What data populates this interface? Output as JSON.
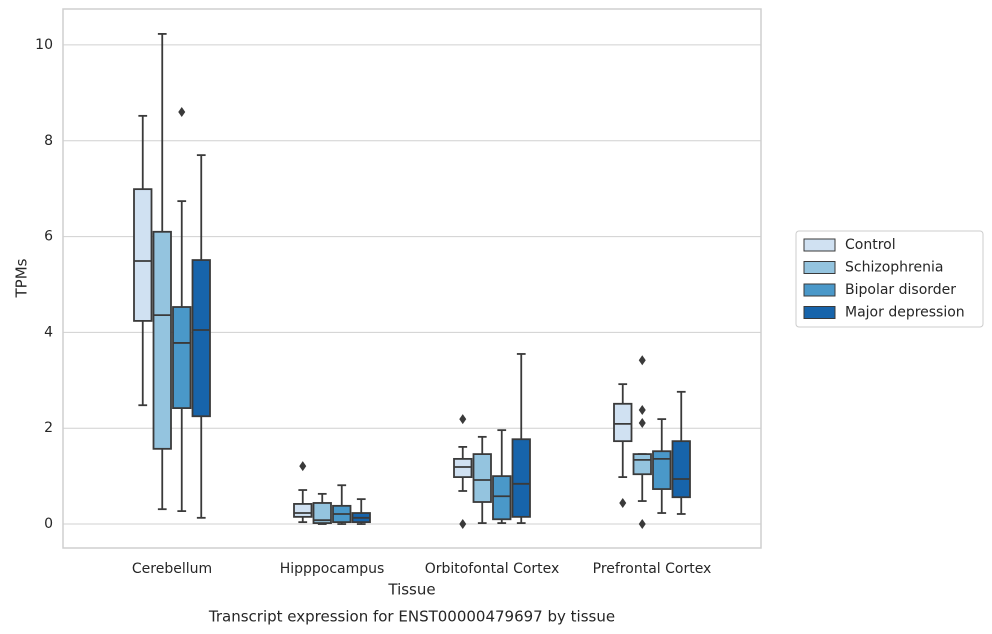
{
  "chart_data": {
    "type": "box",
    "caption": "Transcript expression for ENST00000479697 by tissue",
    "x_label": "Tissue",
    "y_label": "TPMs",
    "categories": [
      "Cerebellum",
      "Hipppocampus",
      "Orbitofontal Cortex",
      "Prefrontal Cortex"
    ],
    "ylim": [
      -0.5,
      10.75
    ],
    "yticks": [
      0,
      2,
      4,
      6,
      8,
      10
    ],
    "grid": true,
    "legend": "right",
    "series": [
      {
        "name": "Control",
        "color": "#d0e1f2",
        "boxes": [
          {
            "low": 2.48,
            "q1": 4.24,
            "median": 5.49,
            "q3": 6.99,
            "high": 8.52,
            "outliers": []
          },
          {
            "low": 0.04,
            "q1": 0.15,
            "median": 0.23,
            "q3": 0.42,
            "high": 0.71,
            "outliers": [
              1.21
            ]
          },
          {
            "low": 0.69,
            "q1": 0.98,
            "median": 1.19,
            "q3": 1.36,
            "high": 1.61,
            "outliers": [
              2.19,
              0
            ]
          },
          {
            "low": 0.98,
            "q1": 1.73,
            "median": 2.09,
            "q3": 2.51,
            "high": 2.92,
            "outliers": [
              0.44
            ]
          }
        ]
      },
      {
        "name": "Schizophrenia",
        "color": "#94c4df",
        "boxes": [
          {
            "low": 0.31,
            "q1": 1.57,
            "median": 4.36,
            "q3": 6.1,
            "high": 10.23,
            "outliers": []
          },
          {
            "low": 0,
            "q1": 0.02,
            "median": 0.08,
            "q3": 0.44,
            "high": 0.63,
            "outliers": []
          },
          {
            "low": 0.02,
            "q1": 0.46,
            "median": 0.92,
            "q3": 1.46,
            "high": 1.82,
            "outliers": []
          },
          {
            "low": 0.48,
            "q1": 1.04,
            "median": 1.34,
            "q3": 1.46,
            "high": 1.46,
            "outliers": [
              2.38,
              2.11,
              3.42,
              0
            ]
          }
        ]
      },
      {
        "name": "Bipolar disorder",
        "color": "#4a98c9",
        "boxes": [
          {
            "low": 0.27,
            "q1": 2.42,
            "median": 3.78,
            "q3": 4.53,
            "high": 6.74,
            "outliers": [
              8.6
            ]
          },
          {
            "low": 0,
            "q1": 0.04,
            "median": 0.21,
            "q3": 0.38,
            "high": 0.81,
            "outliers": []
          },
          {
            "low": 0.02,
            "q1": 0.1,
            "median": 0.58,
            "q3": 1.0,
            "high": 1.96,
            "outliers": []
          },
          {
            "low": 0.23,
            "q1": 0.73,
            "median": 1.36,
            "q3": 1.52,
            "high": 2.19,
            "outliers": []
          }
        ]
      },
      {
        "name": "Major depression",
        "color": "#1764ab",
        "boxes": [
          {
            "low": 0.13,
            "q1": 2.25,
            "median": 4.05,
            "q3": 5.51,
            "high": 7.7,
            "outliers": []
          },
          {
            "low": 0,
            "q1": 0.04,
            "median": 0.13,
            "q3": 0.23,
            "high": 0.52,
            "outliers": []
          },
          {
            "low": 0.02,
            "q1": 0.15,
            "median": 0.84,
            "q3": 1.77,
            "high": 3.55,
            "outliers": []
          },
          {
            "low": 0.21,
            "q1": 0.56,
            "median": 0.94,
            "q3": 1.73,
            "high": 2.76,
            "outliers": []
          }
        ]
      }
    ]
  }
}
